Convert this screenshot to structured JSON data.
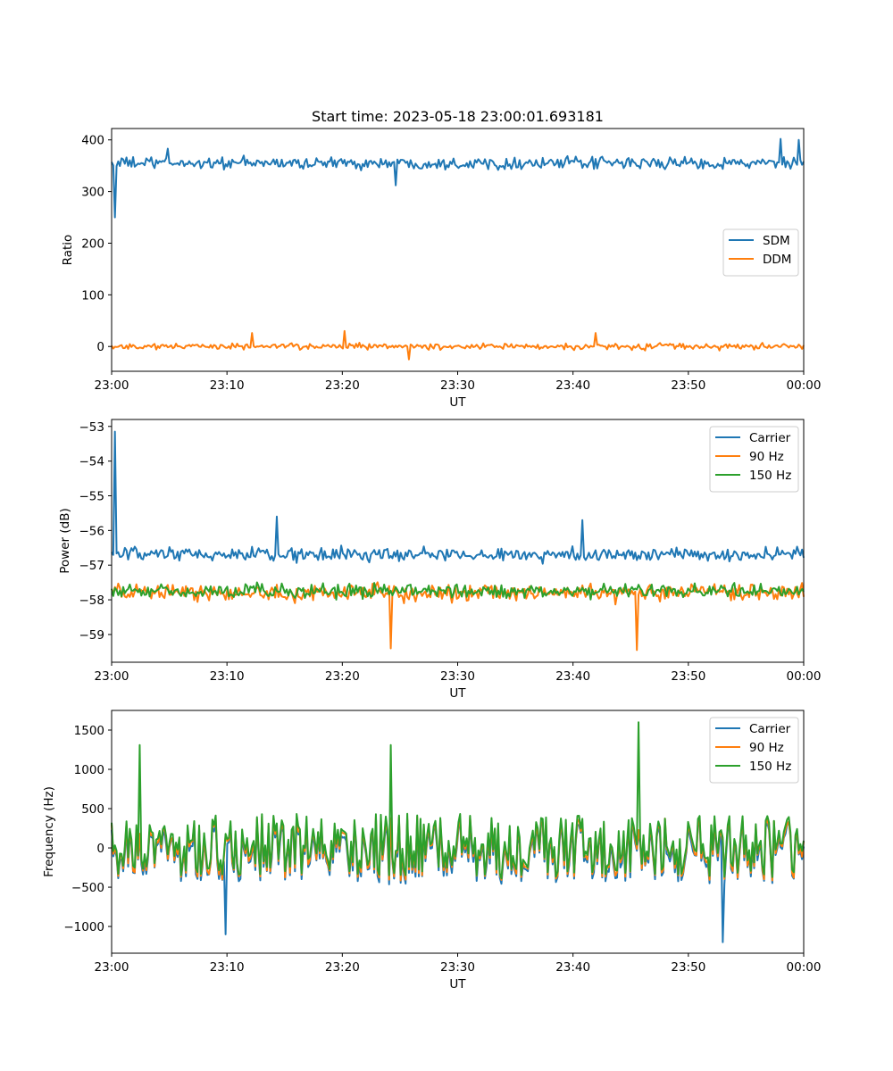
{
  "chart_data": [
    {
      "type": "line",
      "title": "Start time: 2023-05-18 23:00:01.693181",
      "xlabel": "UT",
      "ylabel": "Ratio",
      "xlim": [
        "23:00",
        "00:00"
      ],
      "xticks": [
        "23:00",
        "23:10",
        "23:20",
        "23:30",
        "23:40",
        "23:50",
        "00:00"
      ],
      "ylim": [
        -48,
        422
      ],
      "yticks": [
        0,
        100,
        200,
        300,
        400
      ],
      "ytick_labels": [
        "0",
        "100",
        "200",
        "300",
        "400"
      ],
      "grid": false,
      "legend": "center-right",
      "series": [
        {
          "name": "SDM",
          "color": "#1f77b4",
          "baseline": 355,
          "noise_amplitude": 17,
          "spikes": [
            {
              "time": "23:00:15",
              "value": 250
            },
            {
              "time": "23:04:50",
              "value": 383
            },
            {
              "time": "23:24:35",
              "value": 312
            },
            {
              "time": "23:58:00",
              "value": 402
            },
            {
              "time": "23:59:30",
              "value": 400
            }
          ]
        },
        {
          "name": "DDM",
          "color": "#ff7f0e",
          "baseline": 0,
          "noise_amplitude": 9,
          "spikes": [
            {
              "time": "23:20:15",
              "value": 30
            },
            {
              "time": "23:25:50",
              "value": -25
            },
            {
              "time": "23:12:10",
              "value": 26
            },
            {
              "time": "23:42:00",
              "value": 26
            }
          ]
        }
      ]
    },
    {
      "type": "line",
      "xlabel": "UT",
      "ylabel": "Power (dB)",
      "xlim": [
        "23:00",
        "00:00"
      ],
      "xticks": [
        "23:00",
        "23:10",
        "23:20",
        "23:30",
        "23:40",
        "23:50",
        "00:00"
      ],
      "ylim": [
        -59.8,
        -52.8
      ],
      "yticks": [
        -59,
        -58,
        -57,
        -56,
        -55,
        -54,
        -53
      ],
      "ytick_labels": [
        "−59",
        "−58",
        "−57",
        "−56",
        "−55",
        "−54",
        "−53"
      ],
      "grid": false,
      "legend": "top-right",
      "series": [
        {
          "name": "Carrier",
          "color": "#1f77b4",
          "baseline": -56.7,
          "noise_amplitude": 0.3,
          "spikes": [
            {
              "time": "23:00:15",
              "value": -53.15
            },
            {
              "time": "23:14:20",
              "value": -55.6
            },
            {
              "time": "23:40:50",
              "value": -55.7
            }
          ]
        },
        {
          "name": "90 Hz",
          "color": "#ff7f0e",
          "baseline": -57.8,
          "noise_amplitude": 0.35,
          "spikes": [
            {
              "time": "23:24:10",
              "value": -59.4
            },
            {
              "time": "23:45:30",
              "value": -59.45
            }
          ]
        },
        {
          "name": "150 Hz",
          "color": "#2ca02c",
          "baseline": -57.75,
          "noise_amplitude": 0.3,
          "spikes": []
        }
      ]
    },
    {
      "type": "line",
      "xlabel": "UT",
      "ylabel": "Frequency (Hz)",
      "xlim": [
        "23:00",
        "00:00"
      ],
      "xticks": [
        "23:00",
        "23:10",
        "23:20",
        "23:30",
        "23:40",
        "23:50",
        "00:00"
      ],
      "ylim": [
        -1340,
        1750
      ],
      "yticks": [
        -1000,
        -500,
        0,
        500,
        1000,
        1500
      ],
      "ytick_labels": [
        "−1000",
        "−500",
        "0",
        "500",
        "1000",
        "1500"
      ],
      "grid": false,
      "legend": "top-right",
      "series": [
        {
          "name": "Carrier",
          "color": "#1f77b4",
          "baseline": -50,
          "noise_amplitude": 420,
          "spikes": [
            {
              "time": "23:09:50",
              "value": -1100
            },
            {
              "time": "23:53:00",
              "value": -1200
            }
          ]
        },
        {
          "name": "90 Hz",
          "color": "#ff7f0e",
          "baseline": -10,
          "noise_amplitude": 420,
          "spikes": []
        },
        {
          "name": "150 Hz",
          "color": "#2ca02c",
          "baseline": 30,
          "noise_amplitude": 420,
          "spikes": [
            {
              "time": "23:02:30",
              "value": 1310
            },
            {
              "time": "23:24:10",
              "value": 1310
            },
            {
              "time": "23:45:40",
              "value": 1600
            }
          ]
        }
      ]
    }
  ]
}
